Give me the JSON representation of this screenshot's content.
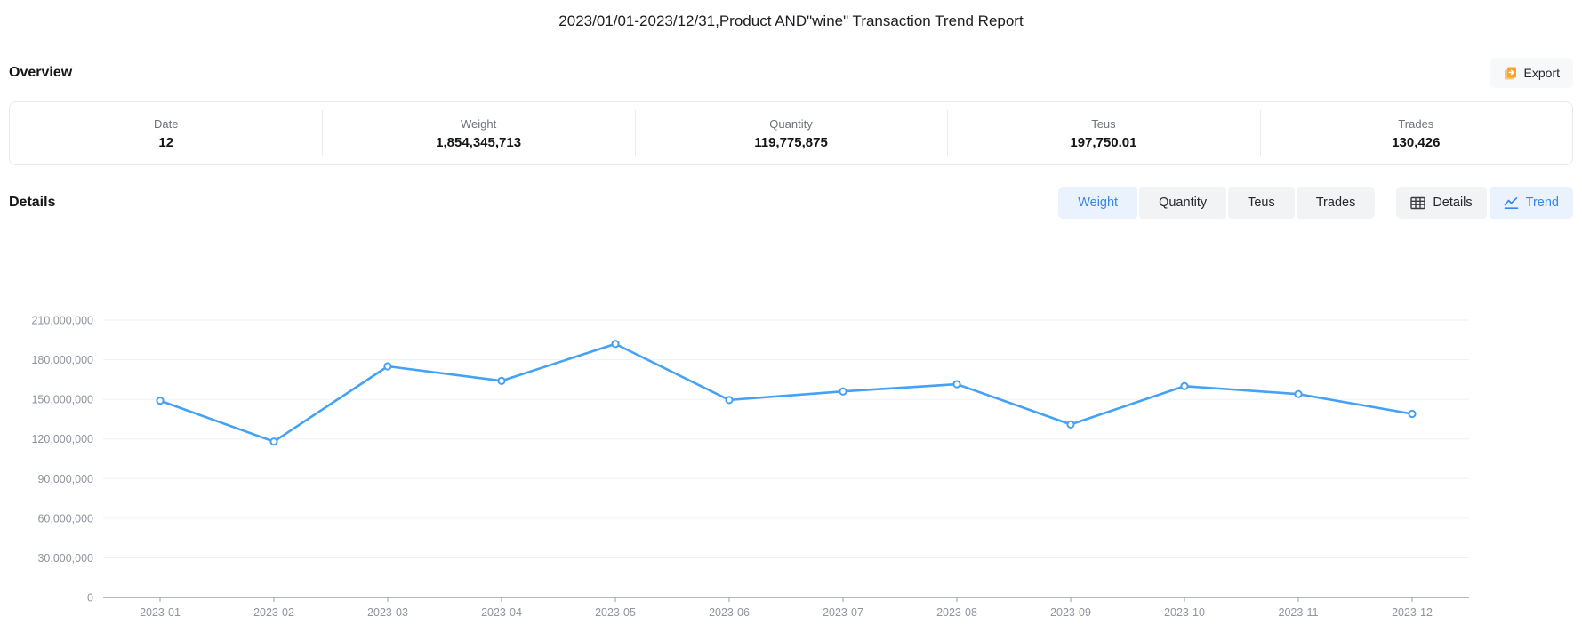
{
  "page": {
    "title": "2023/01/01-2023/12/31,Product AND\"wine\" Transaction Trend Report"
  },
  "overview": {
    "heading": "Overview",
    "export_label": "Export",
    "stats": [
      {
        "label": "Date",
        "value": "12"
      },
      {
        "label": "Weight",
        "value": "1,854,345,713"
      },
      {
        "label": "Quantity",
        "value": "119,775,875"
      },
      {
        "label": "Teus",
        "value": "197,750.01"
      },
      {
        "label": "Trades",
        "value": "130,426"
      }
    ]
  },
  "details": {
    "heading": "Details",
    "metric_tabs": [
      {
        "label": "Weight",
        "active": true
      },
      {
        "label": "Quantity",
        "active": false
      },
      {
        "label": "Teus",
        "active": false
      },
      {
        "label": "Trades",
        "active": false
      }
    ],
    "view_tabs": [
      {
        "label": "Details",
        "icon": "table-icon",
        "active": false
      },
      {
        "label": "Trend",
        "icon": "trend-icon",
        "active": true
      }
    ]
  },
  "colors": {
    "accent_blue": "#3786ec",
    "accent_blue_bg": "#e9f2fd",
    "line_blue": "#44a1f5",
    "button_gray_bg": "#f2f3f5",
    "export_orange": "#f5a62f",
    "export_orange_light": "#f9c472",
    "gridline": "#eef1f6",
    "axis_gray": "#9aa0a8",
    "axis_label_gray": "#8f939c"
  },
  "chart_data": {
    "type": "line",
    "title": "",
    "xlabel": "",
    "ylabel": "",
    "x": [
      "2023-01",
      "2023-02",
      "2023-03",
      "2023-04",
      "2023-05",
      "2023-06",
      "2023-07",
      "2023-08",
      "2023-09",
      "2023-10",
      "2023-11",
      "2023-12"
    ],
    "series": [
      {
        "name": "Weight",
        "values": [
          149000000,
          118000000,
          175000000,
          164000000,
          192000000,
          149500000,
          156000000,
          161500000,
          131000000,
          160000000,
          154000000,
          139000000
        ]
      }
    ],
    "ylim": [
      0,
      210000000
    ],
    "y_interval": 30000000,
    "grid": true,
    "legend_position": "none"
  }
}
